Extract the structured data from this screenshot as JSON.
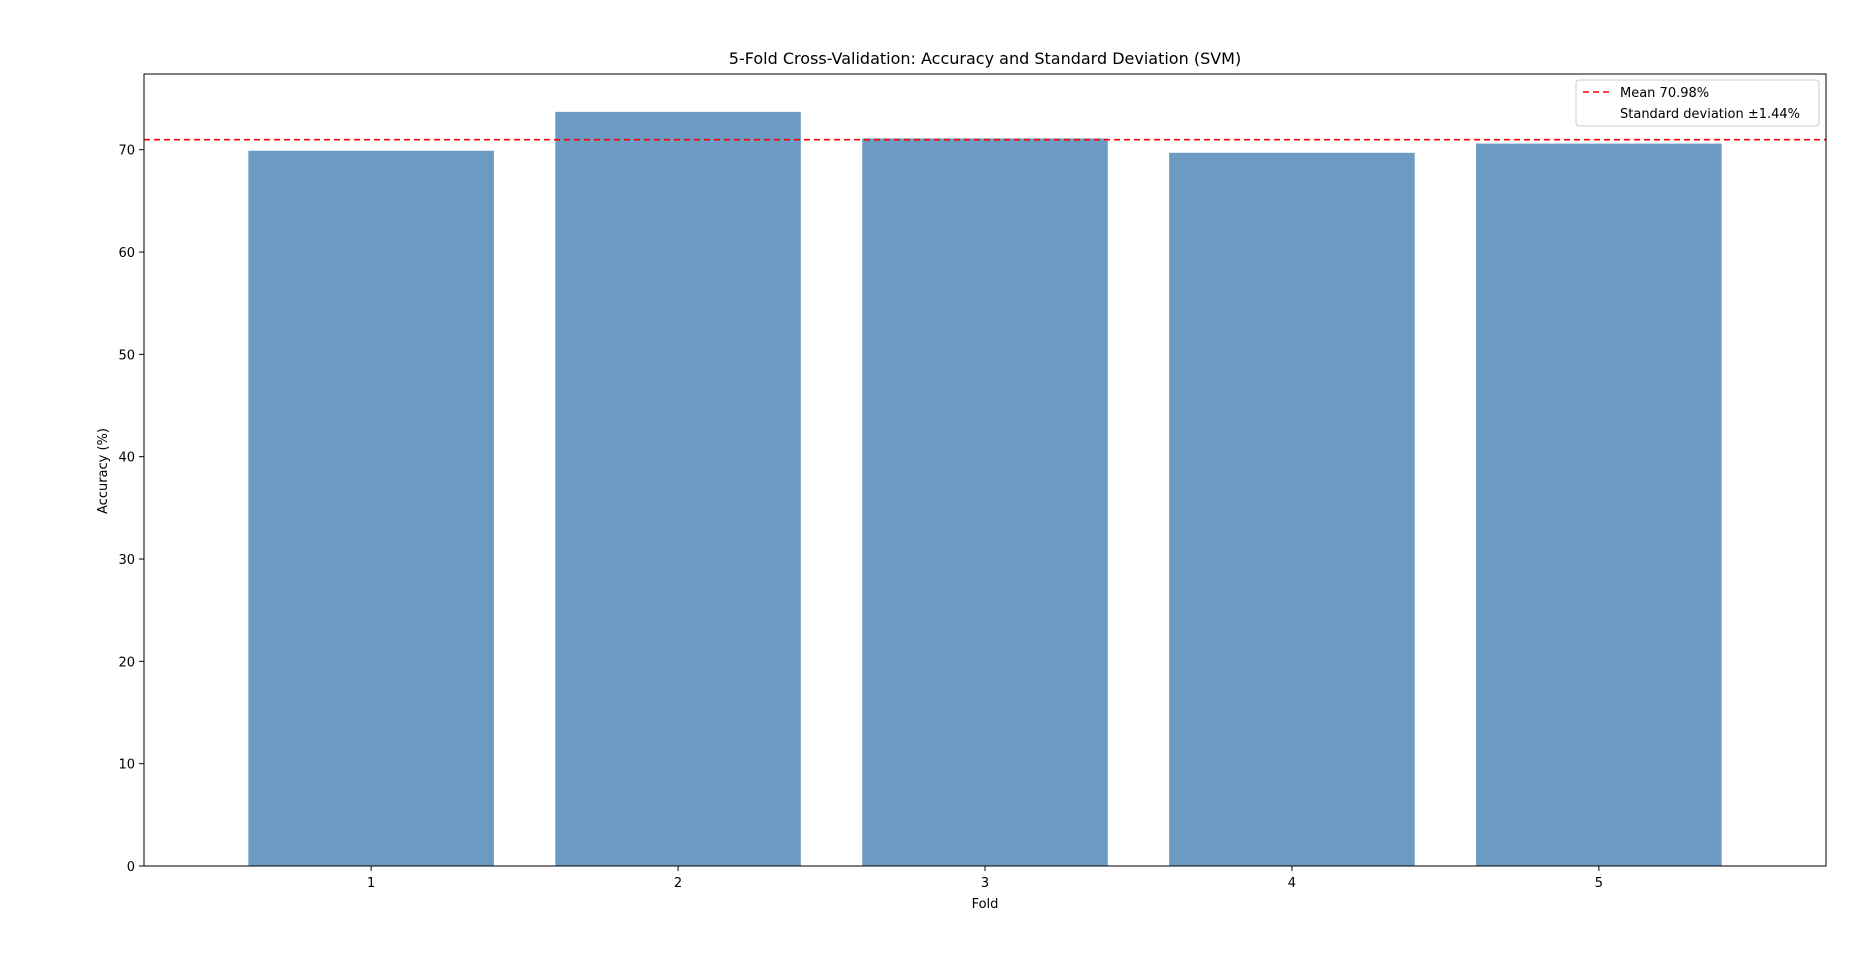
{
  "chart_data": {
    "type": "bar",
    "title": "5-Fold Cross-Validation: Accuracy and Standard Deviation (SVM)",
    "xlabel": "Fold",
    "ylabel": "Accuracy (%)",
    "categories": [
      "1",
      "2",
      "3",
      "4",
      "5"
    ],
    "values": [
      69.9,
      73.7,
      71.1,
      69.7,
      70.6
    ],
    "ylim": [
      0,
      77.4
    ],
    "yticks": [
      "0",
      "10",
      "20",
      "30",
      "40",
      "50",
      "60",
      "70"
    ],
    "bar_color": "#6b9bc3",
    "mean": {
      "value": 70.98,
      "color": "#ff0000",
      "style": "dashed"
    },
    "legend": {
      "position": "top-right",
      "entries": [
        "Mean 70.98%",
        "Standard deviation ±1.44%"
      ]
    },
    "grid": false
  }
}
